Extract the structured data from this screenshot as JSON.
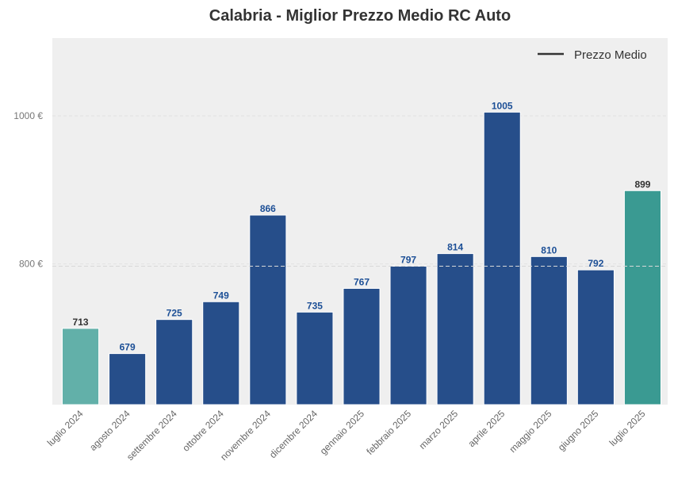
{
  "chart_data": {
    "type": "bar",
    "title": "Calabria - Miglior Prezzo Medio RC Auto",
    "categories": [
      "luglio 2024",
      "agosto 2024",
      "settembre 2024",
      "ottobre 2024",
      "novembre 2024",
      "dicembre 2024",
      "gennaio 2025",
      "febbraio 2025",
      "marzo 2025",
      "aprile 2025",
      "maggio 2025",
      "giugno 2025",
      "luglio 2025"
    ],
    "values": [
      713,
      679,
      725,
      749,
      866,
      735,
      767,
      797,
      814,
      1005,
      810,
      792,
      899
    ],
    "value_labels": [
      "713",
      "679",
      "725",
      "749",
      "866",
      "735",
      "767",
      "797",
      "814",
      "1005",
      "810",
      "792",
      "899"
    ],
    "bar_colors": [
      "#62b0a9",
      "#264e8a",
      "#264e8a",
      "#264e8a",
      "#264e8a",
      "#264e8a",
      "#264e8a",
      "#264e8a",
      "#264e8a",
      "#264e8a",
      "#264e8a",
      "#264e8a",
      "#3a9a92"
    ],
    "label_colors": [
      "#333333",
      "#1c4f96",
      "#1c4f96",
      "#1c4f96",
      "#1c4f96",
      "#1c4f96",
      "#1c4f96",
      "#1c4f96",
      "#1c4f96",
      "#1c4f96",
      "#1c4f96",
      "#1c4f96",
      "#333333"
    ],
    "y_ticks": [
      {
        "value": 800,
        "label": "800 €"
      },
      {
        "value": 1000,
        "label": "1000 €"
      }
    ],
    "ylim": [
      610,
      1105
    ],
    "reference_line": {
      "value": 797,
      "style": "dashed",
      "color": "#d8d8d8"
    },
    "legend": {
      "label": "Prezzo Medio",
      "position": "top-right",
      "line_color": "#333333"
    },
    "grid": true,
    "plot_background": "#efefef",
    "xlabel": "",
    "ylabel": ""
  }
}
